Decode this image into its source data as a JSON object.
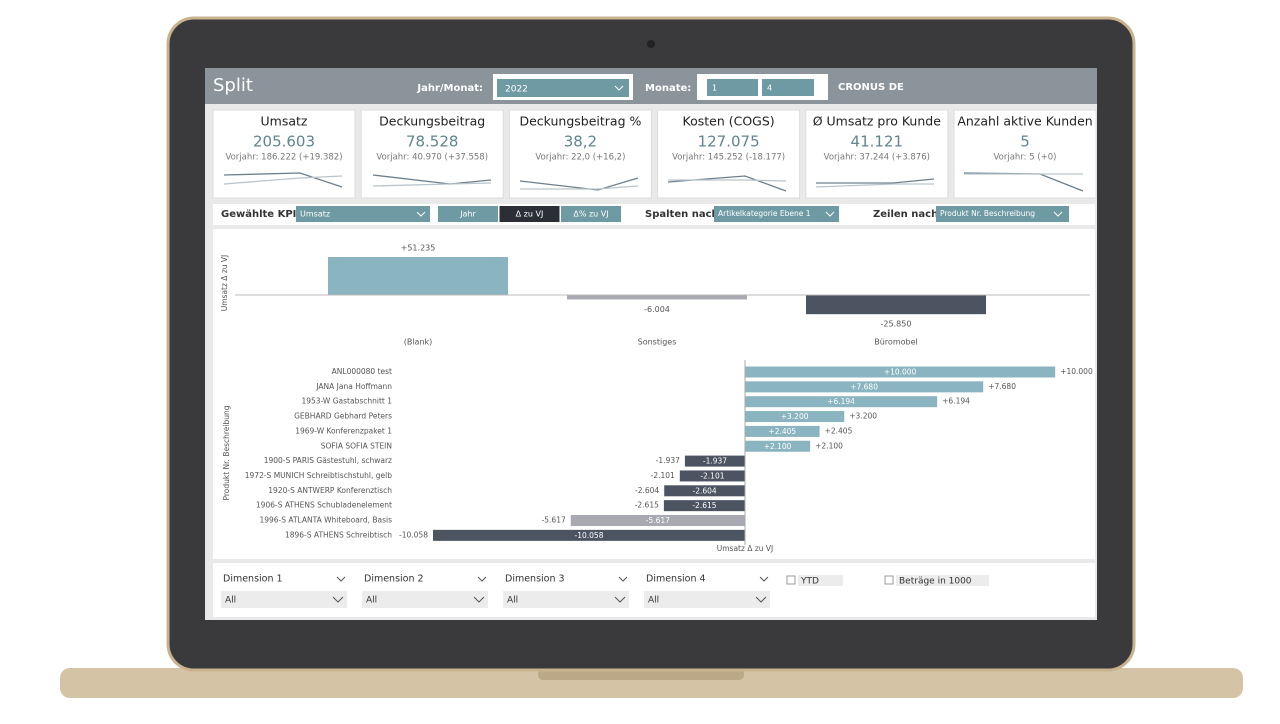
{
  "header": {
    "title": "Split",
    "year_label": "Jahr/Monat:",
    "year": "2022",
    "months_label": "Monate:",
    "month_from": "1",
    "month_to": "4",
    "company": "CRONUS DE"
  },
  "kpis": [
    {
      "title": "Umsatz",
      "value": "205.603",
      "previous": "Vorjahr: 186.222 (+19.382)"
    },
    {
      "title": "Deckungsbeitrag",
      "value": "78.528",
      "previous": "Vorjahr: 40.970 (+37.558)"
    },
    {
      "title": "Deckungsbeitrag %",
      "value": "38,2",
      "previous": "Vorjahr: 22,0 (+16,2)"
    },
    {
      "title": "Kosten (COGS)",
      "value": "127.075",
      "previous": "Vorjahr: 145.252 (-18.177)"
    },
    {
      "title": "Ø Umsatz pro Kunde",
      "value": "41.121",
      "previous": "Vorjahr: 37.244 (+3.876)"
    },
    {
      "title": "Anzahl aktive Kunden",
      "value": "5",
      "previous": "Vorjahr: 5 (+0)"
    }
  ],
  "controls": {
    "kpi_label": "Gewählte KPI:",
    "kpi_value": "Umsatz",
    "buttons": [
      "Jahr",
      "Δ zu VJ",
      "Δ% zu VJ"
    ],
    "active_button": 1,
    "columns_label": "Spalten nach:",
    "columns_value": "Artikelkategorie Ebene 1",
    "rows_label": "Zeilen nach:",
    "rows_value": "Produkt Nr. Beschreibung"
  },
  "slicers": {
    "dimensions": [
      {
        "label": "Dimension 1",
        "value": "All"
      },
      {
        "label": "Dimension 2",
        "value": "All"
      },
      {
        "label": "Dimension 3",
        "value": "All"
      },
      {
        "label": "Dimension 4",
        "value": "All"
      }
    ],
    "toggles": [
      "YTD",
      "Beträge in 1000"
    ]
  },
  "chart_data": [
    {
      "type": "bar",
      "y_label": "Umsatz Δ zu VJ",
      "categories": [
        "(Blank)",
        "Sonstiges",
        "Büromobel"
      ],
      "values": [
        51235,
        -6004,
        -25850
      ],
      "value_labels": [
        "+51.235",
        "-6.004",
        "-25.850"
      ],
      "colors": [
        "#8ab4c0",
        "#a9a9b2",
        "#4c5361"
      ]
    },
    {
      "type": "barh",
      "y_label": "Produkt Nr. Beschreibung",
      "x_label": "Umsatz Δ zu VJ",
      "categories": [
        "ANL000080 test",
        "JANA Jana Hoffmann",
        "1953-W Gastabschnitt 1",
        "GEBHARD Gebhard Peters",
        "1969-W Konferenzpaket 1",
        "SOFIA SOFIA STEIN",
        "1900-S PARIS Gästestuhl, schwarz",
        "1972-S MUNICH Schreibtischstuhl, gelb",
        "1920-S ANTWERP Konferenztisch",
        "1906-S ATHENS Schubladenelement",
        "1996-S ATLANTA Whiteboard, Basis",
        "1896-S ATHENS Schreibtisch"
      ],
      "values": [
        10000,
        7680,
        6194,
        3200,
        2405,
        2100,
        -1937,
        -2101,
        -2604,
        -2615,
        -5617,
        -10058
      ],
      "value_labels": [
        "+10.000",
        "+7.680",
        "+6.194",
        "+3.200",
        "+2.405",
        "+2.100",
        "-1.937",
        "-2.101",
        "-2.604",
        "-2.615",
        "-5.617",
        "-10.058"
      ],
      "colors": [
        "#8ab4c0",
        "#8ab4c0",
        "#8ab4c0",
        "#8ab4c0",
        "#8ab4c0",
        "#8ab4c0",
        "#4c5361",
        "#4c5361",
        "#4c5361",
        "#4c5361",
        "#a9a9b2",
        "#4c5361"
      ]
    }
  ]
}
